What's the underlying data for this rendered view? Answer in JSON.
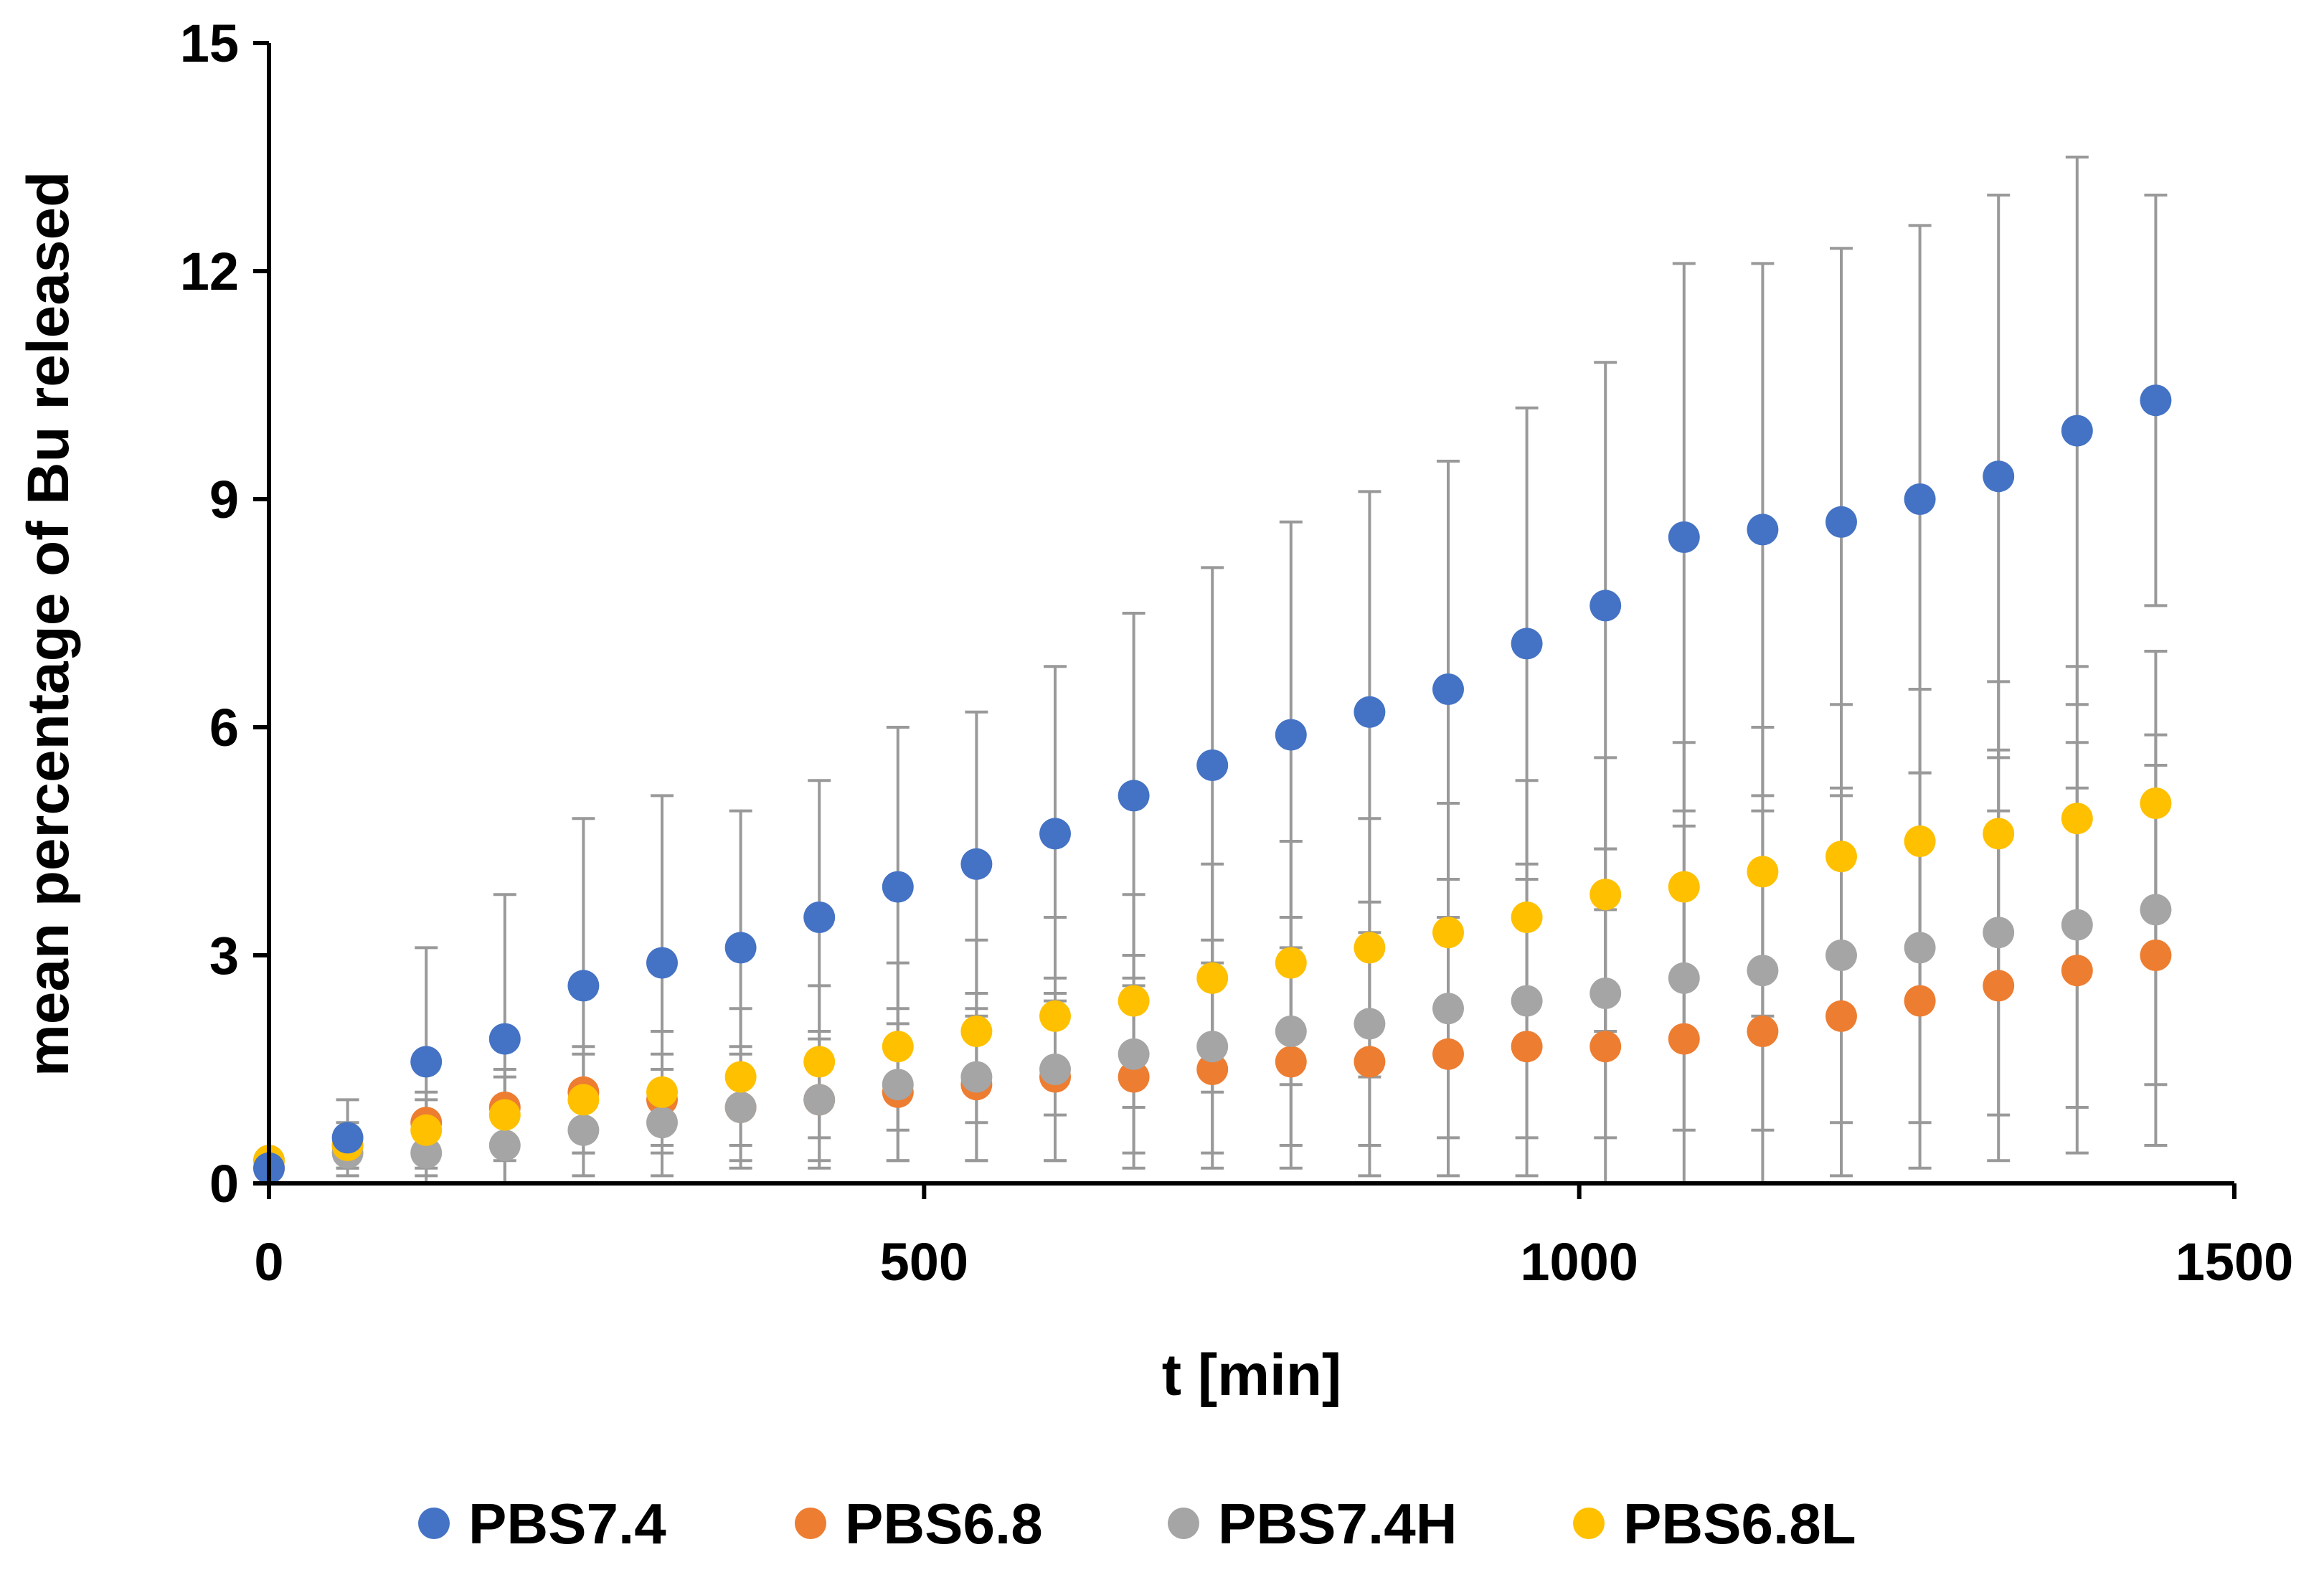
{
  "chart_data": {
    "type": "scatter",
    "title": "",
    "xlabel": "t [min]",
    "ylabel": "mean percentage of Bu released",
    "xlim": [
      0,
      1500
    ],
    "ylim": [
      0,
      15
    ],
    "x_ticks": [
      "0",
      "500",
      "1000",
      "1500"
    ],
    "y_ticks": [
      "0",
      "3",
      "6",
      "9",
      "12",
      "15"
    ],
    "grid": false,
    "legend_position": "bottom",
    "error_bar_color": "#999999",
    "series": [
      {
        "name": "PBS7.4",
        "color": "#4472C4",
        "x": [
          0,
          60,
          120,
          180,
          240,
          300,
          360,
          420,
          480,
          540,
          600,
          660,
          720,
          780,
          840,
          900,
          960,
          1020,
          1080,
          1140,
          1200,
          1260,
          1320,
          1380,
          1440
        ],
        "y": [
          0.2,
          0.6,
          1.6,
          1.9,
          2.6,
          2.9,
          3.1,
          3.5,
          3.9,
          4.2,
          4.6,
          5.1,
          5.5,
          5.9,
          6.2,
          6.5,
          7.1,
          7.6,
          8.5,
          8.6,
          8.7,
          9.0,
          9.3,
          9.9,
          10.3
        ],
        "error": [
          0.2,
          0.5,
          1.5,
          1.9,
          2.2,
          2.2,
          1.8,
          1.8,
          2.1,
          2.0,
          2.2,
          2.4,
          2.6,
          2.8,
          2.9,
          3.0,
          3.1,
          3.2,
          3.6,
          3.5,
          3.6,
          3.6,
          3.7,
          3.6,
          2.7
        ]
      },
      {
        "name": "PBS6.8",
        "color": "#ED7D31",
        "x": [
          0,
          60,
          120,
          180,
          240,
          300,
          360,
          420,
          480,
          540,
          600,
          660,
          720,
          780,
          840,
          900,
          960,
          1020,
          1080,
          1140,
          1200,
          1260,
          1320,
          1380,
          1440
        ],
        "y": [
          0.2,
          0.5,
          0.8,
          1.0,
          1.2,
          1.1,
          1.0,
          1.1,
          1.2,
          1.3,
          1.4,
          1.4,
          1.5,
          1.6,
          1.6,
          1.7,
          1.8,
          1.8,
          1.9,
          2.0,
          2.2,
          2.4,
          2.6,
          2.8,
          3.0
        ],
        "error": [
          0.1,
          0.2,
          0.3,
          0.4,
          0.5,
          0.6,
          0.7,
          0.8,
          0.9,
          1.0,
          1.1,
          1.2,
          1.3,
          1.4,
          1.5,
          1.6,
          1.7,
          1.8,
          1.9,
          2.0,
          2.1,
          2.2,
          2.3,
          2.4,
          2.5
        ]
      },
      {
        "name": "PBS7.4H",
        "color": "#A5A5A5",
        "x": [
          0,
          60,
          120,
          180,
          240,
          300,
          360,
          420,
          480,
          540,
          600,
          660,
          720,
          780,
          840,
          900,
          960,
          1020,
          1080,
          1140,
          1200,
          1260,
          1320,
          1380,
          1440
        ],
        "y": [
          0.3,
          0.4,
          0.4,
          0.5,
          0.7,
          0.8,
          1.0,
          1.1,
          1.3,
          1.4,
          1.5,
          1.7,
          1.8,
          2.0,
          2.1,
          2.3,
          2.4,
          2.5,
          2.7,
          2.8,
          3.0,
          3.1,
          3.3,
          3.4,
          3.6
        ],
        "error": [
          0.1,
          0.2,
          0.4,
          0.5,
          0.6,
          0.7,
          0.8,
          0.9,
          1.0,
          1.1,
          1.2,
          1.3,
          1.4,
          1.5,
          1.6,
          1.7,
          1.8,
          1.9,
          2.0,
          2.1,
          2.2,
          2.3,
          2.4,
          2.4,
          2.3
        ]
      },
      {
        "name": "PBS6.8L",
        "color": "#FFC000",
        "x": [
          0,
          60,
          120,
          180,
          240,
          300,
          360,
          420,
          480,
          540,
          600,
          660,
          720,
          780,
          840,
          900,
          960,
          1020,
          1080,
          1140,
          1200,
          1260,
          1320,
          1380,
          1440
        ],
        "y": [
          0.3,
          0.5,
          0.7,
          0.9,
          1.1,
          1.2,
          1.4,
          1.6,
          1.8,
          2.0,
          2.2,
          2.4,
          2.7,
          2.9,
          3.1,
          3.3,
          3.5,
          3.8,
          3.9,
          4.1,
          4.3,
          4.5,
          4.6,
          4.8,
          5.0
        ],
        "error": [
          0.1,
          0.3,
          0.5,
          0.6,
          0.7,
          0.8,
          0.9,
          1.0,
          1.1,
          1.2,
          1.3,
          1.4,
          1.5,
          1.6,
          1.7,
          1.7,
          1.8,
          1.8,
          1.9,
          1.9,
          2.0,
          2.0,
          2.0,
          2.0,
          2.0
        ]
      }
    ]
  }
}
